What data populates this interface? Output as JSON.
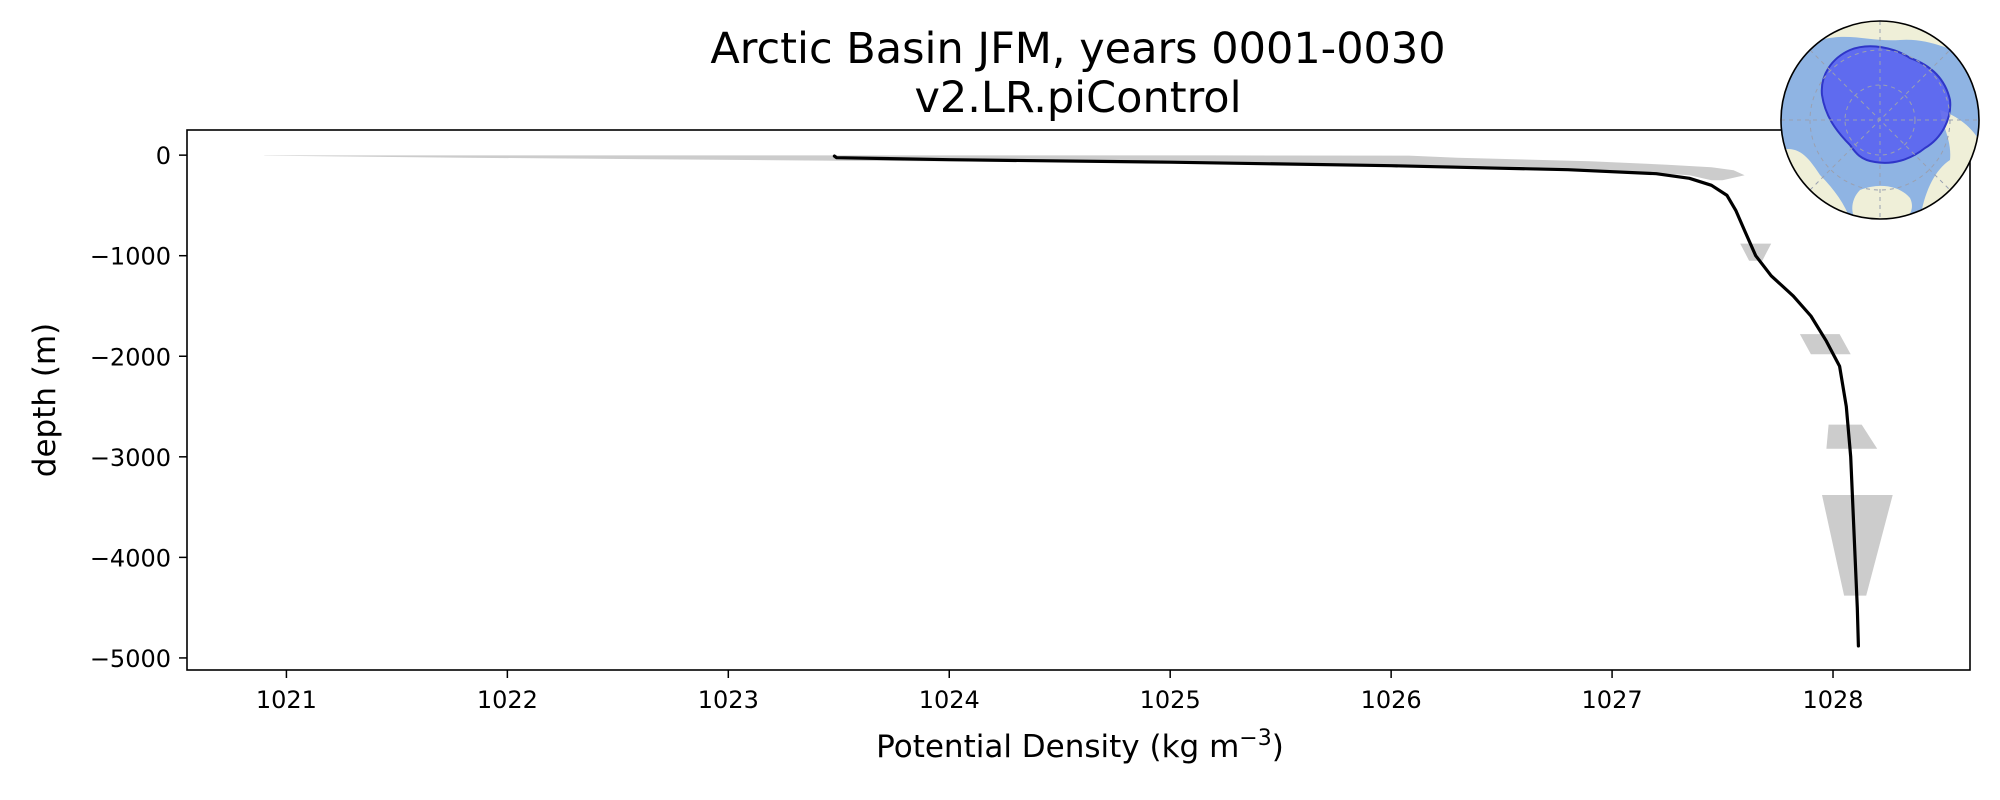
{
  "chart_data": {
    "type": "line",
    "title": "Arctic Basin JFM, years 0001-0030",
    "subtitle": "v2.LR.piControl",
    "xlabel": "Potential Density (kg m",
    "xlabel_sup": "−3",
    "xlabel_end": ")",
    "ylabel": "depth (m)",
    "xlim": [
      1020.55,
      1028.62
    ],
    "ylim": [
      -5120,
      250
    ],
    "xticks": [
      1021,
      1022,
      1023,
      1024,
      1025,
      1026,
      1027,
      1028
    ],
    "xtick_labels": [
      "1021",
      "1022",
      "1023",
      "1024",
      "1025",
      "1026",
      "1027",
      "1028"
    ],
    "yticks": [
      0,
      -1000,
      -2000,
      -3000,
      -4000,
      -5000
    ],
    "ytick_labels": [
      "0",
      "−1000",
      "−2000",
      "−3000",
      "−4000",
      "−5000"
    ],
    "grid": false,
    "series": [
      {
        "color": "#000000",
        "x": [
          1023.48,
          1023.49,
          1024.0,
          1025.0,
          1026.0,
          1026.8,
          1027.2,
          1027.35,
          1027.45,
          1027.52,
          1027.56,
          1027.6,
          1027.65,
          1027.72,
          1027.82,
          1027.9,
          1027.97,
          1028.03,
          1028.06,
          1028.08,
          1028.09,
          1028.1,
          1028.11,
          1028.115
        ],
        "y": [
          -10,
          -25,
          -45,
          -70,
          -105,
          -145,
          -185,
          -230,
          -300,
          -400,
          -550,
          -750,
          -1000,
          -1200,
          -1400,
          -1600,
          -1850,
          -2100,
          -2500,
          -3000,
          -3500,
          -4000,
          -4500,
          -4880
        ]
      }
    ],
    "spread_band": {
      "color": "#cccccc",
      "polygons": [
        {
          "x": [
            1020.9,
            1025.2,
            1026.08,
            1026.3,
            1026.9,
            1027.25,
            1027.45,
            1027.55,
            1027.6,
            1027.5,
            1027.45,
            1027.35,
            1027.0,
            1026.5,
            1025.5,
            1023.5,
            1021.8,
            1020.9
          ],
          "y": [
            -3,
            -3,
            -5,
            -25,
            -60,
            -95,
            -120,
            -150,
            -200,
            -250,
            -250,
            -200,
            -150,
            -110,
            -80,
            -55,
            -25,
            -5
          ]
        },
        {
          "x": [
            1027.58,
            1027.72,
            1027.68,
            1027.62
          ],
          "y": [
            -880,
            -880,
            -1050,
            -1050
          ]
        },
        {
          "x": [
            1027.85,
            1028.03,
            1028.08,
            1027.9
          ],
          "y": [
            -1780,
            -1780,
            -1980,
            -1980
          ]
        },
        {
          "x": [
            1027.98,
            1028.13,
            1028.2,
            1027.97
          ],
          "y": [
            -2680,
            -2680,
            -2920,
            -2920
          ]
        },
        {
          "x": [
            1027.95,
            1028.27,
            1028.15,
            1028.05
          ],
          "y": [
            -3380,
            -3380,
            -4380,
            -4380
          ]
        }
      ]
    }
  },
  "inset_map": {
    "ocean_color": "#8fb4e3",
    "land_color": "#efefd8",
    "region_color": "#5a63f0"
  }
}
